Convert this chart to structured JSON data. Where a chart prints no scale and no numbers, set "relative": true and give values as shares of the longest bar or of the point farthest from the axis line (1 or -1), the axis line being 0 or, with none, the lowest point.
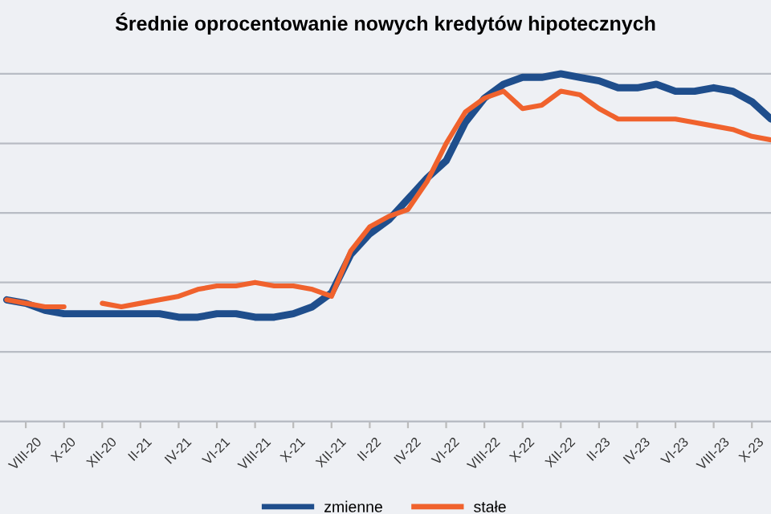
{
  "chart_data": {
    "type": "line",
    "title": "Średnie oprocentowanie nowych kredytów hipotecznych",
    "relative": true,
    "categories": [
      null,
      "VIII-20",
      null,
      "X-20",
      null,
      "XII-20",
      null,
      "II-21",
      null,
      "IV-21",
      null,
      "VI-21",
      null,
      "VIII-21",
      null,
      "X-21",
      null,
      "XII-21",
      null,
      "II-22",
      null,
      "IV-22",
      null,
      "VI-22",
      null,
      "VIII-22",
      null,
      "X-22",
      null,
      "XII-22",
      null,
      "II-23",
      null,
      "IV-23",
      null,
      "VI-23",
      null,
      "VIII-23",
      null,
      "X-23",
      null
    ],
    "series": [
      {
        "name": "zmienne",
        "color": "#1f4e8c",
        "values": [
          0.35,
          0.34,
          0.32,
          0.31,
          0.31,
          0.31,
          0.31,
          0.31,
          0.31,
          0.3,
          0.3,
          0.31,
          0.31,
          0.3,
          0.3,
          0.31,
          0.33,
          0.37,
          0.48,
          0.54,
          0.58,
          0.64,
          0.7,
          0.75,
          0.86,
          0.93,
          0.97,
          0.99,
          0.99,
          1.0,
          0.99,
          0.98,
          0.96,
          0.96,
          0.97,
          0.95,
          0.95,
          0.96,
          0.95,
          0.92,
          0.87
        ]
      },
      {
        "name": "stałe",
        "color": "#f0622d",
        "values": [
          0.35,
          0.34,
          0.33,
          0.33,
          null,
          0.34,
          0.33,
          0.34,
          0.35,
          0.36,
          0.38,
          0.39,
          0.39,
          0.4,
          0.39,
          0.39,
          0.38,
          0.36,
          0.49,
          0.56,
          0.59,
          0.61,
          0.69,
          0.8,
          0.89,
          0.93,
          0.95,
          0.9,
          0.91,
          0.95,
          0.94,
          0.9,
          0.87,
          0.87,
          0.87,
          0.87,
          0.86,
          0.85,
          0.84,
          0.82,
          0.81
        ]
      }
    ],
    "grid": "y",
    "legend": "bottom",
    "marker": "none",
    "line_style": "solid"
  }
}
